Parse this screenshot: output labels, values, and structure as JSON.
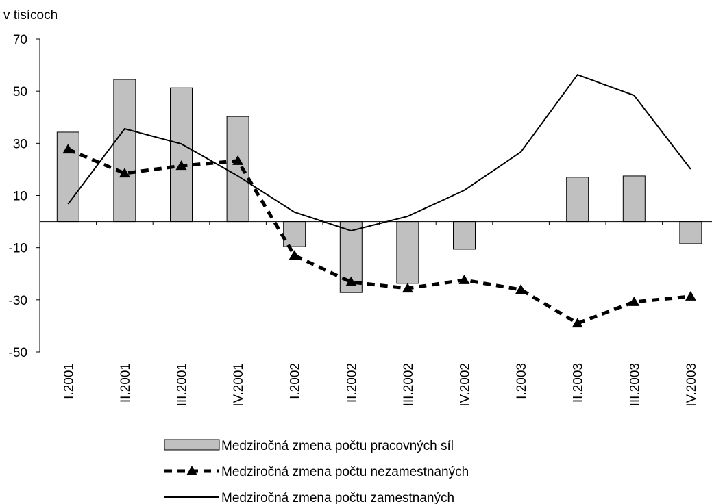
{
  "chart_data": {
    "type": "bar_line",
    "y_axis_label": "v tisícoch",
    "categories": [
      "I.2001",
      "II.2001",
      "III.2001",
      "IV.2001",
      "I.2002",
      "II.2002",
      "III.2002",
      "IV.2002",
      "I.2003",
      "II.2003",
      "III.2003",
      "IV.2003"
    ],
    "ylim": [
      -50,
      70
    ],
    "yticks": [
      -50,
      -30,
      -10,
      10,
      30,
      50,
      70
    ],
    "series": [
      {
        "name": "Medziročná zmena počtu pracovných síl",
        "kind": "bar",
        "color": "#c0c0c0",
        "values": [
          34.3,
          54.5,
          51.3,
          40.3,
          -9.6,
          -27.2,
          -23.7,
          -10.6,
          0,
          17,
          17.5,
          -8.5
        ]
      },
      {
        "name": "Medziročná zmena počtu nezamestnaných",
        "kind": "dashed-line-triangle",
        "color": "#000000",
        "values": [
          27.7,
          18.5,
          21.4,
          23.3,
          -13,
          -23.2,
          -25.6,
          -22.4,
          -26.1,
          -39,
          -30.8,
          -28.7
        ]
      },
      {
        "name": "Medziročná zmena počtu zamestnaných",
        "kind": "line",
        "color": "#000000",
        "values": [
          6.7,
          35.6,
          29.8,
          17.5,
          3.6,
          -3.5,
          2,
          12,
          26.7,
          56.3,
          48.4,
          20.1
        ]
      }
    ]
  }
}
